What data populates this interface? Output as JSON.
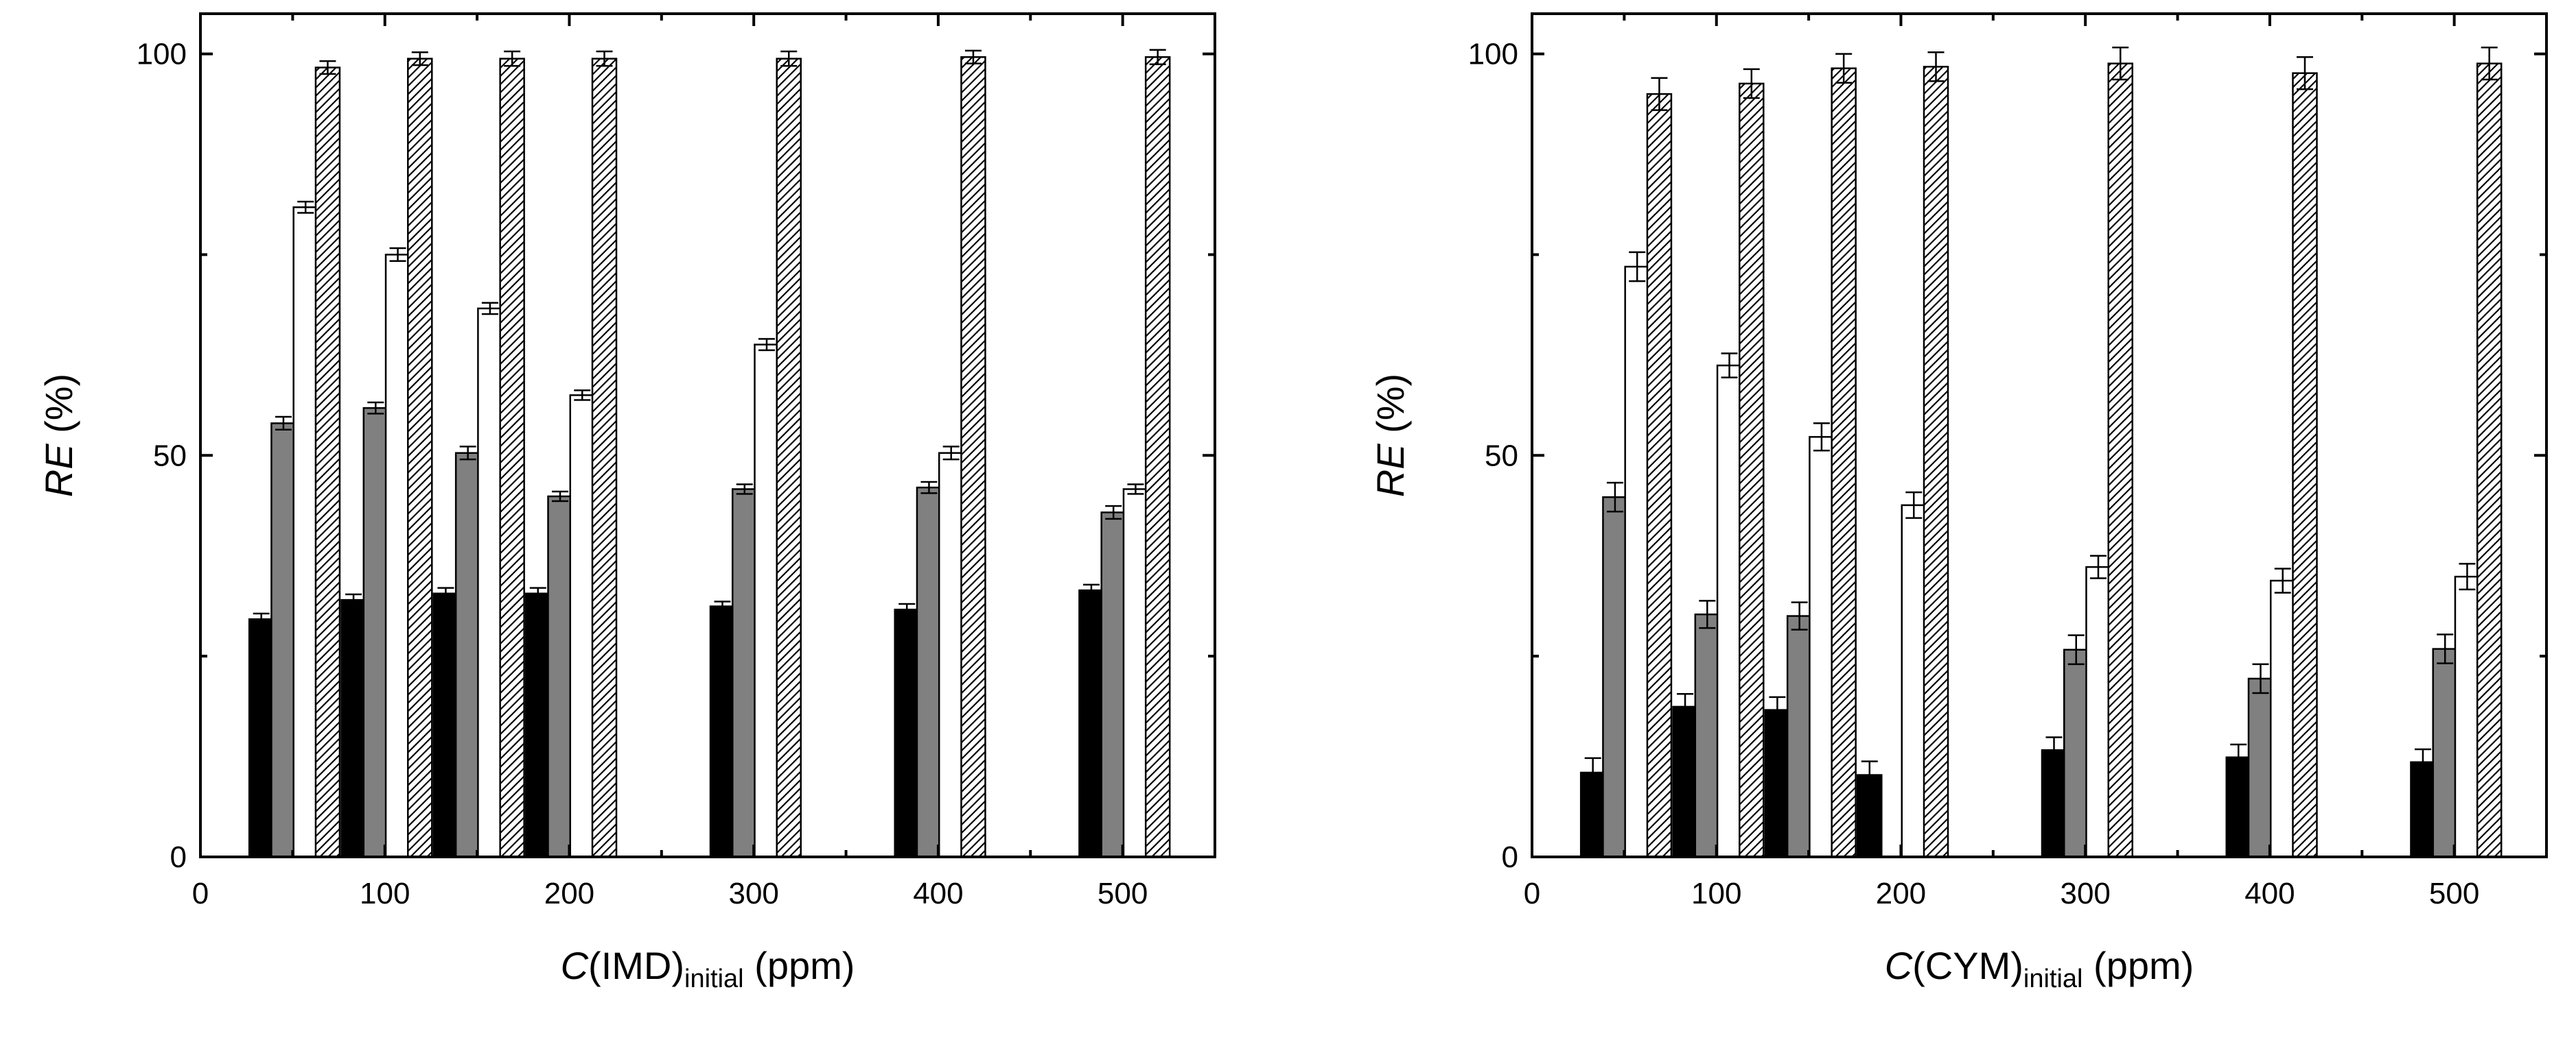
{
  "chart_data": [
    {
      "type": "bar",
      "xlabel": {
        "main": "C",
        "paren": "(IMD)",
        "subscript": "initial",
        "unit": " (ppm)"
      },
      "ylabel": {
        "main": "RE",
        "unit": " (%)"
      },
      "xlim": [
        0,
        550
      ],
      "ylim": [
        0,
        105
      ],
      "xticks": [
        0,
        100,
        200,
        300,
        400,
        500
      ],
      "yticks": [
        0,
        50,
        100
      ],
      "series": [
        {
          "name": "series-1",
          "fill": "#000000",
          "pattern": "solid",
          "points": [
            {
              "x": 33,
              "y": 29.6,
              "err": 0.7
            },
            {
              "x": 83,
              "y": 32.0,
              "err": 0.7
            },
            {
              "x": 133,
              "y": 32.8,
              "err": 0.7
            },
            {
              "x": 183,
              "y": 32.8,
              "err": 0.7
            },
            {
              "x": 283,
              "y": 31.2,
              "err": 0.6
            },
            {
              "x": 383,
              "y": 30.8,
              "err": 0.7
            },
            {
              "x": 483,
              "y": 33.2,
              "err": 0.7
            }
          ]
        },
        {
          "name": "series-2",
          "fill": "#808080",
          "pattern": "solid",
          "points": [
            {
              "x": 45,
              "y": 54.0,
              "err": 0.8
            },
            {
              "x": 95,
              "y": 55.9,
              "err": 0.7
            },
            {
              "x": 145,
              "y": 50.3,
              "err": 0.8
            },
            {
              "x": 195,
              "y": 44.9,
              "err": 0.6
            },
            {
              "x": 295,
              "y": 45.8,
              "err": 0.6
            },
            {
              "x": 395,
              "y": 46.0,
              "err": 0.7
            },
            {
              "x": 495,
              "y": 42.9,
              "err": 0.8
            }
          ]
        },
        {
          "name": "series-3",
          "fill": "#ffffff",
          "pattern": "solid",
          "points": [
            {
              "x": 57,
              "y": 80.9,
              "err": 0.7
            },
            {
              "x": 107,
              "y": 75.0,
              "err": 0.8
            },
            {
              "x": 157,
              "y": 68.3,
              "err": 0.7
            },
            {
              "x": 207,
              "y": 57.5,
              "err": 0.6
            },
            {
              "x": 307,
              "y": 63.8,
              "err": 0.7
            },
            {
              "x": 407,
              "y": 50.3,
              "err": 0.8
            },
            {
              "x": 507,
              "y": 45.8,
              "err": 0.6
            }
          ]
        },
        {
          "name": "series-4",
          "fill": "#ffffff",
          "pattern": "hatch",
          "points": [
            {
              "x": 69,
              "y": 98.3,
              "err": 0.8
            },
            {
              "x": 119,
              "y": 99.4,
              "err": 0.8
            },
            {
              "x": 169,
              "y": 99.4,
              "err": 0.9
            },
            {
              "x": 219,
              "y": 99.4,
              "err": 0.9
            },
            {
              "x": 319,
              "y": 99.4,
              "err": 0.9
            },
            {
              "x": 419,
              "y": 99.6,
              "err": 0.8
            },
            {
              "x": 519,
              "y": 99.6,
              "err": 0.9
            }
          ]
        }
      ]
    },
    {
      "type": "bar",
      "xlabel": {
        "main": "C",
        "paren": "(CYM)",
        "subscript": "initial",
        "unit": " (ppm)"
      },
      "ylabel": {
        "main": "RE",
        "unit": " (%)"
      },
      "xlim": [
        0,
        550
      ],
      "ylim": [
        0,
        105
      ],
      "xticks": [
        0,
        100,
        200,
        300,
        400,
        500
      ],
      "yticks": [
        0,
        50,
        100
      ],
      "series": [
        {
          "name": "series-1",
          "fill": "#000000",
          "pattern": "solid",
          "points": [
            {
              "x": 33,
              "y": 10.5,
              "err": 1.8
            },
            {
              "x": 83,
              "y": 18.7,
              "err": 1.6
            },
            {
              "x": 133,
              "y": 18.3,
              "err": 1.6
            },
            {
              "x": 183,
              "y": 10.2,
              "err": 1.7
            },
            {
              "x": 283,
              "y": 13.3,
              "err": 1.6
            },
            {
              "x": 383,
              "y": 12.4,
              "err": 1.6
            },
            {
              "x": 483,
              "y": 11.8,
              "err": 1.6
            }
          ]
        },
        {
          "name": "series-2",
          "fill": "#808080",
          "pattern": "solid",
          "points": [
            {
              "x": 45,
              "y": 44.8,
              "err": 1.8
            },
            {
              "x": 95,
              "y": 30.2,
              "err": 1.7
            },
            {
              "x": 145,
              "y": 30.0,
              "err": 1.7
            },
            {
              "x": 295,
              "y": 25.8,
              "err": 1.8
            },
            {
              "x": 395,
              "y": 22.2,
              "err": 1.8
            },
            {
              "x": 495,
              "y": 25.9,
              "err": 1.8
            }
          ]
        },
        {
          "name": "series-3",
          "fill": "#ffffff",
          "pattern": "solid",
          "points": [
            {
              "x": 57,
              "y": 73.5,
              "err": 1.8
            },
            {
              "x": 107,
              "y": 61.2,
              "err": 1.5
            },
            {
              "x": 157,
              "y": 52.3,
              "err": 1.7
            },
            {
              "x": 207,
              "y": 43.8,
              "err": 1.6
            },
            {
              "x": 307,
              "y": 36.1,
              "err": 1.4
            },
            {
              "x": 407,
              "y": 34.4,
              "err": 1.5
            },
            {
              "x": 507,
              "y": 34.9,
              "err": 1.6
            }
          ]
        },
        {
          "name": "series-4",
          "fill": "#ffffff",
          "pattern": "hatch",
          "points": [
            {
              "x": 69,
              "y": 95.0,
              "err": 2.0
            },
            {
              "x": 119,
              "y": 96.3,
              "err": 1.8
            },
            {
              "x": 169,
              "y": 98.2,
              "err": 1.8
            },
            {
              "x": 219,
              "y": 98.4,
              "err": 1.8
            },
            {
              "x": 319,
              "y": 98.8,
              "err": 2.0
            },
            {
              "x": 419,
              "y": 97.6,
              "err": 2.0
            },
            {
              "x": 519,
              "y": 98.8,
              "err": 2.0
            }
          ]
        }
      ]
    }
  ]
}
